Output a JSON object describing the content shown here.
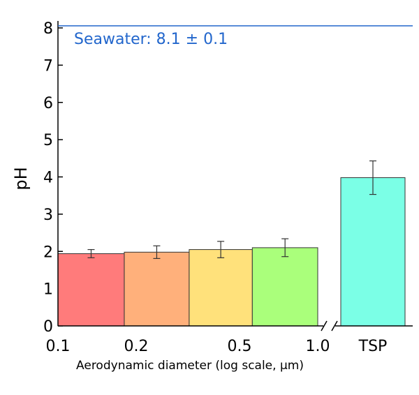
{
  "chart_data": {
    "type": "bar",
    "ylabel": "pH",
    "xlabel": "Aerodynamic diameter (log scale, µm)",
    "x_scale": "log",
    "ylim": [
      0,
      8
    ],
    "y_ticks": [
      "0",
      "1",
      "2",
      "3",
      "4",
      "5",
      "6",
      "7",
      "8"
    ],
    "x_ticks": [
      "0.1",
      "0.2",
      "0.5",
      "1.0"
    ],
    "bars": [
      {
        "x_from": 0.1,
        "x_to": 0.18,
        "value": 1.94,
        "error": 0.11,
        "color": "#ff7b7b"
      },
      {
        "x_from": 0.18,
        "x_to": 0.32,
        "value": 1.98,
        "error": 0.17,
        "color": "#ffb07b"
      },
      {
        "x_from": 0.32,
        "x_to": 0.56,
        "value": 2.05,
        "error": 0.22,
        "color": "#ffe17b"
      },
      {
        "x_from": 0.56,
        "x_to": 1.0,
        "value": 2.1,
        "error": 0.24,
        "color": "#aaff7b"
      }
    ],
    "extra_bar": {
      "label": "TSP",
      "value": 3.98,
      "error": 0.45,
      "color": "#7bffe6"
    },
    "reference_line": {
      "value": 8.1,
      "label": "Seawater: 8.1 ± 0.1",
      "color": "#2266cc"
    },
    "axis_break": true
  }
}
